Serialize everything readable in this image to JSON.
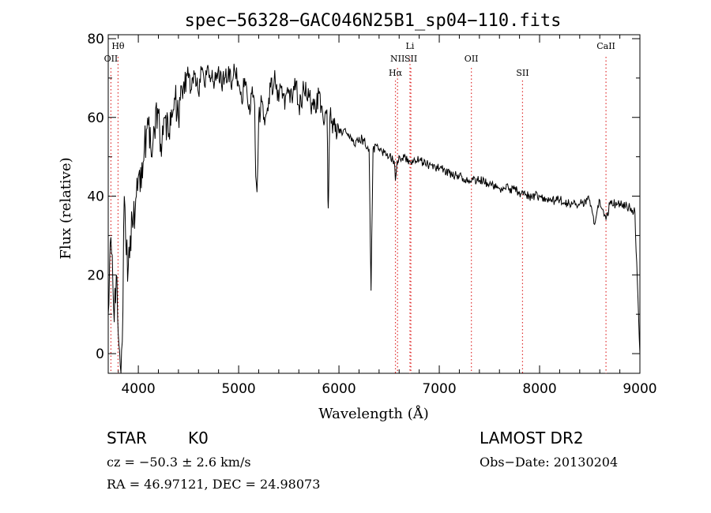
{
  "chart_data": {
    "type": "line",
    "title": "spec−56328−GAC046N25B1_sp04−110.fits",
    "xlabel": "Wavelength (Å)",
    "ylabel": "Flux (relative)",
    "xlim": [
      3700,
      9000
    ],
    "ylim": [
      -5,
      81
    ],
    "xticks": [
      4000,
      5000,
      6000,
      7000,
      8000,
      9000
    ],
    "yticks": [
      0,
      20,
      40,
      60,
      80
    ],
    "grid": false,
    "series": [
      {
        "x": [
          3700,
          3720,
          3740,
          3760,
          3780,
          3800,
          3820,
          3840,
          3860,
          3880,
          3900,
          3920,
          3950,
          3980,
          4000,
          4030,
          4060,
          4100,
          4130,
          4160,
          4200,
          4230,
          4260,
          4300,
          4330,
          4360,
          4400,
          4430,
          4460,
          4500,
          4530,
          4560,
          4600,
          4630,
          4660,
          4700,
          4730,
          4760,
          4800,
          4830,
          4860,
          4900,
          4930,
          4960,
          5000,
          5030,
          5060,
          5100,
          5130,
          5160,
          5170,
          5183,
          5200,
          5230,
          5260,
          5300,
          5330,
          5340,
          5360,
          5400,
          5430,
          5460,
          5500,
          5530,
          5560,
          5600,
          5650,
          5700,
          5750,
          5800,
          5850,
          5880,
          5890,
          5896,
          5910,
          5950,
          6000,
          6050,
          6100,
          6150,
          6200,
          6250,
          6300,
          6320,
          6340,
          6400,
          6450,
          6500,
          6550,
          6563,
          6580,
          6650,
          6700,
          6800,
          6900,
          7000,
          7100,
          7200,
          7300,
          7400,
          7500,
          7600,
          7700,
          7800,
          7900,
          8000,
          8100,
          8200,
          8300,
          8400,
          8500,
          8542,
          8600,
          8662,
          8700,
          8800,
          8900,
          8950,
          9000
        ],
        "y": [
          10,
          28,
          25,
          8,
          20,
          5,
          -3,
          3,
          40,
          25,
          22,
          30,
          33,
          40,
          45,
          42,
          52,
          58,
          50,
          57,
          61,
          50,
          60,
          55,
          62,
          65,
          60,
          68,
          66,
          70,
          67,
          71,
          66,
          72,
          68,
          72,
          70,
          69,
          73,
          68,
          70,
          73,
          67,
          72,
          68,
          64,
          70,
          62,
          66,
          63,
          45,
          41,
          60,
          64,
          58,
          65,
          70,
          66,
          72,
          64,
          68,
          62,
          67,
          65,
          70,
          63,
          67,
          65,
          62,
          66,
          58,
          62,
          39,
          40,
          60,
          58,
          56,
          57,
          55,
          53,
          55,
          54,
          52,
          16,
          52,
          52,
          51,
          50,
          49,
          44,
          49,
          50,
          49,
          49,
          48,
          47,
          46,
          45,
          44,
          44,
          43,
          42,
          42,
          41,
          40,
          40,
          39,
          39,
          38,
          38,
          39,
          33,
          39,
          34,
          38,
          38,
          37,
          36,
          0
        ]
      }
    ],
    "spectral_lines": [
      {
        "label": "Hθ",
        "x": 3798,
        "row": 1
      },
      {
        "label": "OII",
        "x": 3727,
        "row": 2
      },
      {
        "label": "Li",
        "x": 6708,
        "row": 1
      },
      {
        "label": "NII",
        "x": 6584,
        "row": 2
      },
      {
        "label": "SII",
        "x": 6717,
        "row": 2
      },
      {
        "label": "Hα",
        "x": 6563,
        "row": 3
      },
      {
        "label": "OII",
        "x": 7320,
        "row": 2
      },
      {
        "label": "SII",
        "x": 7830,
        "row": 3
      },
      {
        "label": "CaII",
        "x": 8662,
        "row": 1
      }
    ]
  },
  "info": {
    "class_label": "STAR",
    "subclass_label": "K0",
    "survey_label": "LAMOST DR2",
    "redshift_text": "cz = −50.3 ± 2.6 km/s",
    "obs_date_text": "Obs−Date: 20130204",
    "coords_text": "RA =  46.97121, DEC =  24.98073"
  }
}
